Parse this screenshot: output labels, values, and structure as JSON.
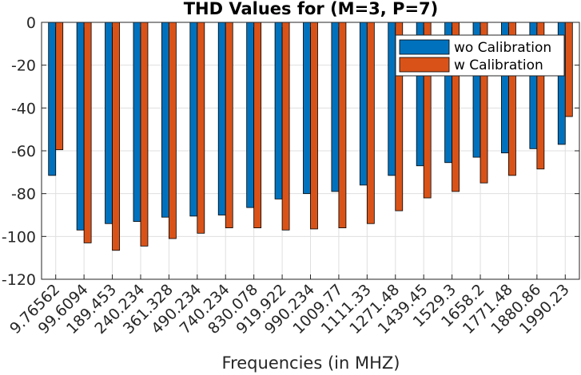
{
  "chart_data": {
    "type": "bar",
    "title": "THD Values for (M=3, P=7)",
    "xlabel": "Frequencies (in MHZ)",
    "ylabel": "",
    "ylim": [
      -120,
      0
    ],
    "yticks": [
      0,
      -20,
      -40,
      -60,
      -80,
      -100,
      -120
    ],
    "grid": true,
    "legend_position": "top-right",
    "categories": [
      "9.76562",
      "99.6094",
      "189.453",
      "240.234",
      "361.328",
      "490.234",
      "740.234",
      "830.078",
      "919.922",
      "990.234",
      "1009.77",
      "1111.33",
      "1271.48",
      "1439.45",
      "1529.3",
      "1658.2",
      "1771.48",
      "1880.86",
      "1990.23"
    ],
    "series": [
      {
        "name": "wo Calibration",
        "color": "#0072bd",
        "values": [
          -71.5,
          -97,
          -94,
          -93,
          -91,
          -90.5,
          -90,
          -86.5,
          -82.5,
          -80,
          -79,
          -76,
          -71.5,
          -67,
          -65.5,
          -63,
          -61,
          -59,
          -57
        ]
      },
      {
        "name": "w Calibration",
        "color": "#d95319",
        "values": [
          -59.5,
          -103,
          -106.5,
          -104.5,
          -101,
          -98.5,
          -96,
          -96,
          -97,
          -96.5,
          -96,
          -94,
          -88,
          -82,
          -79,
          -75,
          -71.5,
          -68.5,
          -44
        ]
      }
    ]
  }
}
